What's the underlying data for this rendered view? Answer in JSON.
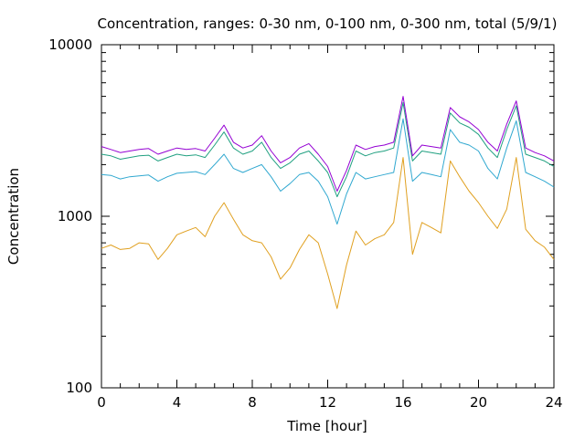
{
  "chart_data": {
    "type": "line",
    "title": "Concentration, ranges: 0-30 nm, 0-100 nm, 0-300 nm, total (5/9/1)",
    "xlabel": "Time [hour]",
    "ylabel": "Concentration",
    "xlim": [
      0,
      24
    ],
    "ylim": [
      100,
      10000
    ],
    "yscale": "log",
    "grid": false,
    "xticks": [
      0,
      4,
      8,
      12,
      16,
      20,
      24
    ],
    "xtick_labels": [
      "0",
      "4",
      "8",
      "12",
      "16",
      "20",
      "24"
    ],
    "yticks": [
      100,
      1000,
      10000
    ],
    "ytick_labels": [
      "100",
      "1000",
      "10000"
    ],
    "x": [
      0,
      0.5,
      1,
      1.5,
      2,
      2.5,
      3,
      3.5,
      4,
      4.5,
      5,
      5.5,
      6,
      6.5,
      7,
      7.5,
      8,
      8.5,
      9,
      9.5,
      10,
      10.5,
      11,
      11.5,
      12,
      12.5,
      13,
      13.5,
      14,
      14.5,
      15,
      15.5,
      16,
      16.5,
      17,
      17.5,
      18,
      18.5,
      19,
      19.5,
      20,
      20.5,
      21,
      21.5,
      22,
      22.5,
      23,
      23.5,
      24
    ],
    "series": [
      {
        "color": "#e0a020",
        "values": [
          650,
          680,
          640,
          650,
          700,
          690,
          560,
          650,
          780,
          820,
          860,
          760,
          1000,
          1200,
          960,
          780,
          720,
          700,
          580,
          430,
          500,
          640,
          780,
          700,
          460,
          290,
          520,
          820,
          680,
          740,
          780,
          920,
          2200,
          600,
          920,
          860,
          800,
          2100,
          1700,
          1400,
          1200,
          1000,
          850,
          1100,
          2200,
          840,
          720,
          660,
          560
        ]
      },
      {
        "color": "#30a8d0",
        "values": [
          1750,
          1730,
          1650,
          1700,
          1720,
          1740,
          1600,
          1700,
          1780,
          1800,
          1820,
          1750,
          2000,
          2300,
          1900,
          1800,
          1900,
          2000,
          1700,
          1400,
          1550,
          1750,
          1800,
          1600,
          1300,
          900,
          1350,
          1800,
          1650,
          1700,
          1750,
          1800,
          3700,
          1600,
          1800,
          1750,
          1700,
          3200,
          2700,
          2600,
          2400,
          1900,
          1650,
          2500,
          3600,
          1800,
          1700,
          1600,
          1480
        ]
      },
      {
        "color": "#20a080",
        "values": [
          2300,
          2250,
          2150,
          2200,
          2250,
          2270,
          2100,
          2200,
          2300,
          2250,
          2280,
          2200,
          2600,
          3100,
          2500,
          2300,
          2400,
          2700,
          2200,
          1900,
          2050,
          2300,
          2400,
          2100,
          1800,
          1300,
          1700,
          2400,
          2250,
          2350,
          2400,
          2500,
          4600,
          2100,
          2400,
          2350,
          2300,
          4000,
          3500,
          3300,
          3000,
          2500,
          2200,
          3200,
          4400,
          2300,
          2200,
          2100,
          1950
        ]
      },
      {
        "color": "#9400d3",
        "values": [
          2550,
          2450,
          2350,
          2400,
          2450,
          2480,
          2300,
          2400,
          2500,
          2450,
          2480,
          2400,
          2850,
          3400,
          2700,
          2500,
          2600,
          2950,
          2400,
          2050,
          2200,
          2500,
          2650,
          2300,
          1950,
          1400,
          1850,
          2600,
          2450,
          2550,
          2600,
          2700,
          5000,
          2250,
          2600,
          2550,
          2500,
          4300,
          3800,
          3550,
          3200,
          2700,
          2400,
          3450,
          4700,
          2500,
          2350,
          2250,
          2100
        ]
      }
    ]
  }
}
